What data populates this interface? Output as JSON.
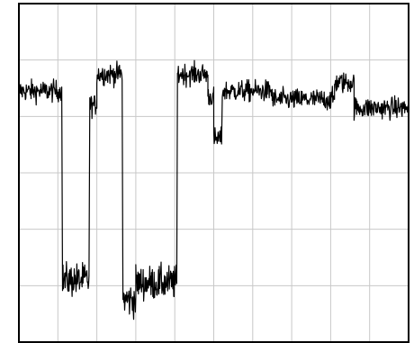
{
  "chart_data": {
    "type": "line",
    "title": "",
    "xlabel": "",
    "ylabel": "",
    "grid": true,
    "legend": "none",
    "x_divisions": 10,
    "y_divisions": 6,
    "xlim": [
      0,
      10
    ],
    "ylim": [
      0,
      6
    ],
    "colors": {
      "background": "#ffffff",
      "grid": "#c8c8c8",
      "frame": "#000000",
      "trace": "#000000"
    },
    "series": [
      {
        "noise": 0.18,
        "segments": [
          {
            "x0": 0.0,
            "x1": 1.1,
            "y": 4.45
          },
          {
            "x0": 1.12,
            "x1": 1.8,
            "y": 1.1
          },
          {
            "x0": 1.82,
            "x1": 2.0,
            "y": 4.2
          },
          {
            "x0": 2.0,
            "x1": 2.65,
            "y": 4.75
          },
          {
            "x0": 2.67,
            "x1": 3.0,
            "y": 0.75
          },
          {
            "x0": 3.0,
            "x1": 4.05,
            "y": 1.05
          },
          {
            "x0": 4.07,
            "x1": 4.85,
            "y": 4.75
          },
          {
            "x0": 4.85,
            "x1": 5.0,
            "y": 4.35
          },
          {
            "x0": 5.0,
            "x1": 5.2,
            "y": 3.6
          },
          {
            "x0": 5.22,
            "x1": 6.5,
            "y": 4.45
          },
          {
            "x0": 6.5,
            "x1": 8.1,
            "y": 4.3
          },
          {
            "x0": 8.1,
            "x1": 8.6,
            "y": 4.6
          },
          {
            "x0": 8.6,
            "x1": 10.0,
            "y": 4.15
          }
        ]
      }
    ]
  }
}
